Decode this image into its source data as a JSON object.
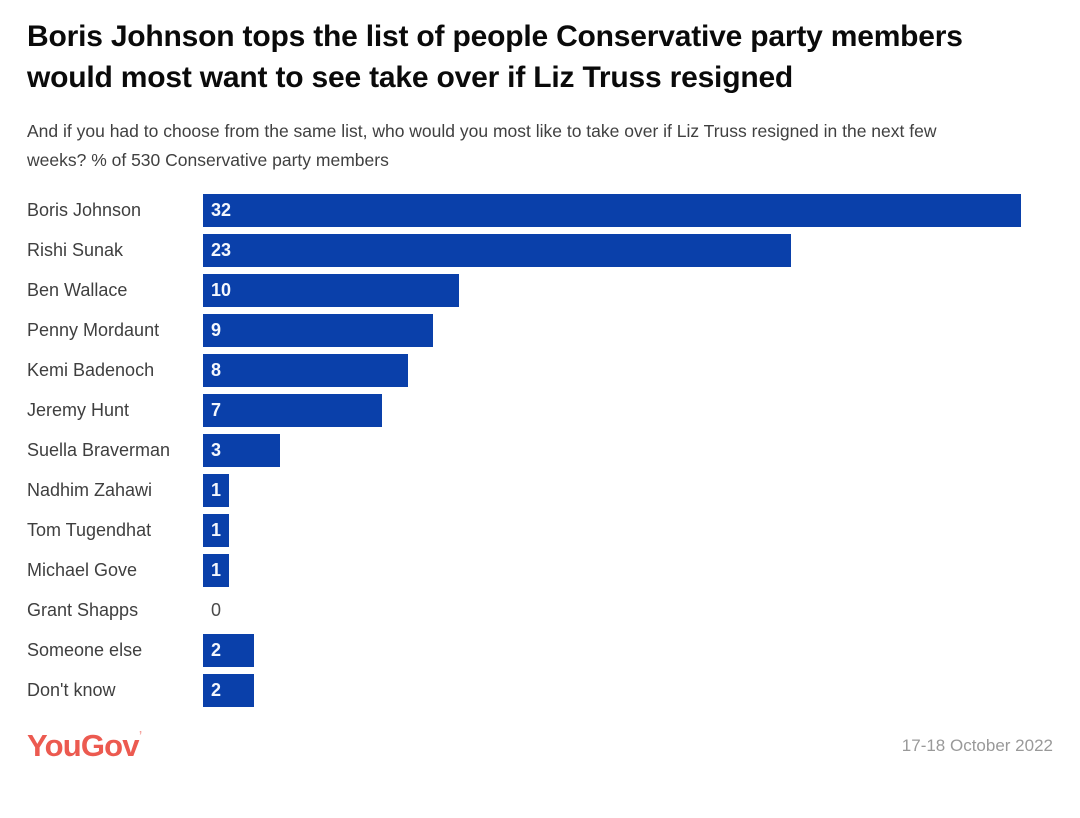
{
  "header": {
    "title": "Boris Johnson tops the list of people Conservative party members would most want to see take over if Liz Truss resigned",
    "subtitle": "And if you had to choose from the same list, who would you most like to take over if Liz Truss resigned in the next few weeks? % of 530 Conservative party members"
  },
  "chart_data": {
    "type": "bar",
    "orientation": "horizontal",
    "unit": "% of 530 Conservative party members",
    "categories": [
      "Boris Johnson",
      "Rishi Sunak",
      "Ben Wallace",
      "Penny Mordaunt",
      "Kemi Badenoch",
      "Jeremy Hunt",
      "Suella Braverman",
      "Nadhim Zahawi",
      "Tom Tugendhat",
      "Michael Gove",
      "Grant Shapps",
      "Someone else",
      "Don't know"
    ],
    "values": [
      32,
      23,
      10,
      9,
      8,
      7,
      3,
      1,
      1,
      1,
      0,
      2,
      2
    ],
    "xlim": [
      0,
      32
    ],
    "grid": false,
    "legend": false,
    "value_labels": "inside-left",
    "bar_color": "#0a40aa"
  },
  "footer": {
    "logo_text": "YouGov",
    "logo_tick": "’",
    "logo_color": "#ec5a50",
    "date_label": "17-18 October 2022"
  }
}
